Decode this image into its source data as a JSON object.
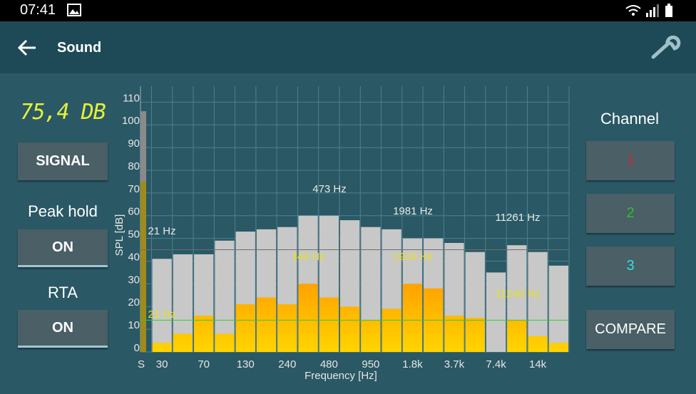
{
  "status_bar": {
    "time": "07:41"
  },
  "header": {
    "title": "Sound"
  },
  "left_panel": {
    "level": "75,4 DB",
    "signal_button": "SIGNAL",
    "peak_hold_label": "Peak hold",
    "peak_hold_button": "ON",
    "rta_label": "RTA",
    "rta_button": "ON"
  },
  "right_panel": {
    "channel_label": "Channel",
    "channels": [
      "1",
      "2",
      "3"
    ],
    "compare_button": "COMPARE"
  },
  "chart_data": {
    "type": "bar",
    "x_label": "Frequency [Hz]",
    "y_label": "SPL [dB]",
    "categories": [
      "30",
      null,
      "70",
      null,
      "130",
      null,
      "240",
      null,
      "480",
      null,
      "950",
      null,
      "1.8k",
      null,
      "3.7k",
      null,
      "7.4k",
      null,
      "14k",
      null
    ],
    "series": [
      {
        "color": "#c8c8c8",
        "values": [
          41,
          43,
          43,
          49,
          53,
          54,
          55,
          60,
          60,
          58,
          55,
          54,
          50,
          50,
          48,
          44,
          35,
          47,
          44,
          38
        ]
      },
      {
        "color": "#ffd400",
        "values": [
          4,
          8,
          16,
          8,
          21,
          24,
          21,
          30,
          24,
          20,
          14,
          19,
          30,
          28,
          16,
          15,
          0,
          14,
          7,
          4
        ]
      }
    ],
    "meter": {
      "label": "S",
      "value": 75,
      "peak": 106
    },
    "lines": [
      {
        "value": 45,
        "color": "#6e6e6e"
      },
      {
        "value": 14,
        "color": "#33cc33"
      }
    ],
    "annotations": [
      {
        "text": "21 Hz",
        "color": "#e8e8e8"
      },
      {
        "text": "473 Hz",
        "color": "#e8e8e8"
      },
      {
        "text": "1981 Hz",
        "color": "#e8e8e8"
      },
      {
        "text": "11261 Hz",
        "color": "#e8e8e8"
      },
      {
        "text": "21 Hz",
        "color": "#e6e020"
      },
      {
        "text": "344 Hz",
        "color": "#e6e020"
      },
      {
        "text": "1916 Hz",
        "color": "#e6e020"
      },
      {
        "text": "11240 Hz",
        "color": "#e6e020"
      }
    ],
    "ylim": [
      0,
      117
    ],
    "yticks": [
      0,
      10,
      20,
      30,
      40,
      50,
      60,
      70,
      80,
      90,
      100,
      110
    ],
    "grid": true
  }
}
